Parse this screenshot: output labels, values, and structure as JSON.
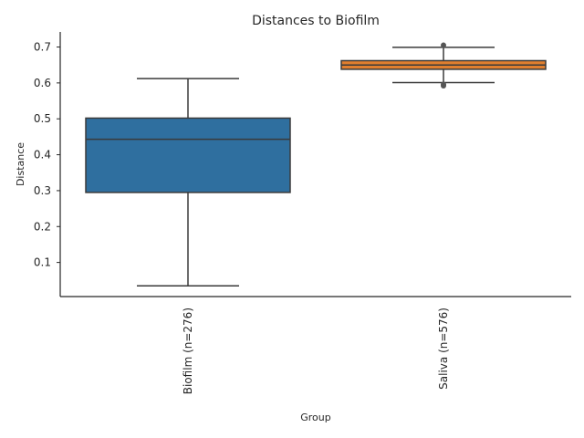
{
  "chart_data": {
    "type": "box",
    "title": "Distances to Biofilm",
    "xlabel": "Group",
    "ylabel": "Distance",
    "ylim": [
      0.005,
      0.742
    ],
    "yticks": [
      0.1,
      0.2,
      0.3,
      0.4,
      0.5,
      0.6,
      0.7
    ],
    "ytick_labels": [
      "0.1",
      "0.2",
      "0.3",
      "0.4",
      "0.5",
      "0.6",
      "0.7"
    ],
    "grid": false,
    "groups": [
      {
        "label": "Biofilm (n=276)",
        "color": "#2f6f9f",
        "whisker_low": 0.035,
        "q1": 0.295,
        "median": 0.443,
        "q3": 0.502,
        "whisker_high": 0.612,
        "outliers": []
      },
      {
        "label": "Saliva (n=576)",
        "color": "#e07f2f",
        "whisker_low": 0.601,
        "q1": 0.638,
        "median": 0.65,
        "q3": 0.662,
        "whisker_high": 0.699,
        "outliers": [
          0.592,
          0.596,
          0.705
        ]
      }
    ]
  }
}
